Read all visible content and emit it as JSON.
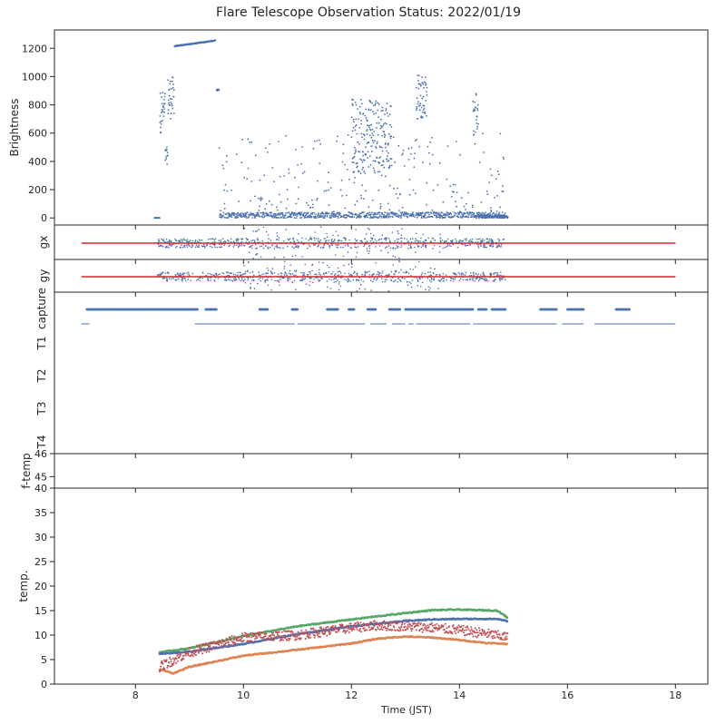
{
  "figure": {
    "title": "Flare Telescope Observation Status: 2022/01/19",
    "xlabel": "Time (JST)",
    "x_ticks": [
      8,
      10,
      12,
      14,
      16,
      18
    ],
    "x_range": [
      6.5,
      18.6
    ]
  },
  "colors": {
    "blue": "#4c72b0",
    "orange": "#dd8452",
    "green": "#55a868",
    "red": "#c44e52",
    "refline": "#d62728",
    "frame": "#262626"
  },
  "chart_data": [
    {
      "id": "brightness",
      "type": "scatter",
      "ylabel": "Brightness",
      "ylim": [
        -50,
        1330
      ],
      "y_ticks": [
        0,
        200,
        400,
        600,
        800,
        1000,
        1200
      ],
      "segments": [
        {
          "x": [
            8.35,
            8.45
          ],
          "y": [
            0,
            0
          ],
          "mode": "flat"
        },
        {
          "x": [
            8.45,
            8.55
          ],
          "y": [
            600,
            900
          ],
          "mode": "noise"
        },
        {
          "x": [
            8.55,
            8.6
          ],
          "y": [
            380,
            500
          ],
          "mode": "noise"
        },
        {
          "x": [
            8.6,
            8.72
          ],
          "y": [
            700,
            1000
          ],
          "mode": "noise"
        },
        {
          "x": [
            8.72,
            9.48
          ],
          "y": [
            1215,
            1255
          ],
          "mode": "ramp"
        },
        {
          "x": [
            9.5,
            9.55
          ],
          "y": [
            900,
            910
          ],
          "mode": "noise"
        },
        {
          "x": [
            9.55,
            14.85
          ],
          "y": [
            0,
            300
          ],
          "mode": "sparse"
        },
        {
          "x": [
            12.0,
            12.75
          ],
          "y": [
            300,
            840
          ],
          "mode": "burst"
        },
        {
          "x": [
            13.2,
            13.4
          ],
          "y": [
            700,
            1010
          ],
          "mode": "burst"
        },
        {
          "x": [
            14.25,
            14.35
          ],
          "y": [
            500,
            900
          ],
          "mode": "burst"
        },
        {
          "x": [
            14.35,
            14.9
          ],
          "y": [
            0,
            20
          ],
          "mode": "flat"
        }
      ]
    },
    {
      "id": "gx",
      "type": "scatter",
      "ylabel": "gx",
      "ref_line": {
        "x": [
          7.0,
          18.0
        ],
        "y": 0
      },
      "point_range": [
        8.4,
        14.85
      ]
    },
    {
      "id": "gy",
      "type": "scatter",
      "ylabel": "gy",
      "ref_line": {
        "x": [
          7.0,
          18.0
        ],
        "y": 0
      },
      "point_range": [
        8.4,
        14.85
      ]
    },
    {
      "id": "capture",
      "type": "scatter",
      "ylabels": [
        "capture",
        "T1",
        "T2",
        "T3",
        "T4"
      ],
      "capture_ranges": [
        [
          7.1,
          9.15
        ],
        [
          9.3,
          9.5
        ],
        [
          10.3,
          10.45
        ],
        [
          10.9,
          11.0
        ],
        [
          11.55,
          11.75
        ],
        [
          11.95,
          12.05
        ],
        [
          12.3,
          12.45
        ],
        [
          12.7,
          12.9
        ],
        [
          13.0,
          14.25
        ],
        [
          14.35,
          14.5
        ],
        [
          14.6,
          14.85
        ],
        [
          15.5,
          15.8
        ],
        [
          16.0,
          16.3
        ],
        [
          16.9,
          17.15
        ]
      ],
      "t1_ranges": [
        [
          7.0,
          7.15
        ],
        [
          9.1,
          10.95
        ],
        [
          11.0,
          12.25
        ],
        [
          12.35,
          12.65
        ],
        [
          12.75,
          13.0
        ],
        [
          13.05,
          13.15
        ],
        [
          13.2,
          14.2
        ],
        [
          14.25,
          15.8
        ],
        [
          15.9,
          16.3
        ],
        [
          16.5,
          18.0
        ]
      ]
    },
    {
      "id": "f-temp",
      "type": "line",
      "ylabel": "f-temp",
      "ylim": [
        44.5,
        46.0
      ],
      "y_ticks": [
        45,
        46
      ]
    },
    {
      "id": "temp",
      "type": "scatter",
      "ylabel": "temp.",
      "ylim": [
        0,
        40
      ],
      "y_ticks": [
        0,
        5,
        10,
        15,
        20,
        25,
        30,
        35,
        40
      ],
      "series": [
        {
          "color": "green",
          "x": [
            8.45,
            9.0,
            10.0,
            11.0,
            12.0,
            13.0,
            13.5,
            14.0,
            14.7,
            14.9
          ],
          "y": [
            6.5,
            7.3,
            9.8,
            11.8,
            13.2,
            14.5,
            15.1,
            15.2,
            15.0,
            13.5
          ]
        },
        {
          "color": "blue",
          "x": [
            8.45,
            9.0,
            10.0,
            11.0,
            12.0,
            13.0,
            13.5,
            14.0,
            14.7,
            14.9
          ],
          "y": [
            6.2,
            6.6,
            8.2,
            10.2,
            11.8,
            12.9,
            13.2,
            13.3,
            13.3,
            12.8
          ]
        },
        {
          "color": "orange",
          "x": [
            8.45,
            8.7,
            9.0,
            10.0,
            11.0,
            12.0,
            12.5,
            13.0,
            13.5,
            14.0,
            14.5,
            14.9
          ],
          "y": [
            3.0,
            2.2,
            3.5,
            5.8,
            7.0,
            8.3,
            9.3,
            9.7,
            9.5,
            9.0,
            8.4,
            8.2
          ]
        },
        {
          "color": "red",
          "x": [
            8.45,
            9.0,
            10.0,
            11.0,
            12.0,
            12.5,
            13.0,
            13.5,
            14.0,
            14.5,
            14.9
          ],
          "y": [
            3.5,
            6.5,
            9.5,
            10.0,
            11.5,
            12.0,
            11.8,
            11.5,
            11.0,
            10.3,
            9.5
          ],
          "noise": 1.0
        }
      ]
    }
  ]
}
